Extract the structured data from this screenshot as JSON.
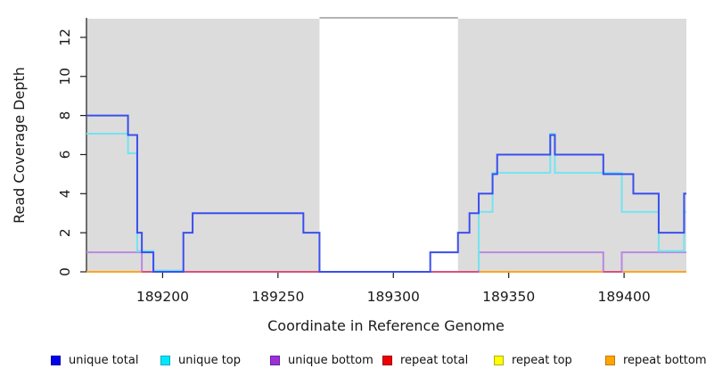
{
  "chart_data": {
    "type": "line",
    "subtype": "step",
    "title": "",
    "xlabel": "Coordinate in Reference Genome",
    "ylabel": "Read Coverage Depth",
    "xlim": [
      189167,
      189427
    ],
    "ylim": [
      0,
      13
    ],
    "grid": false,
    "xticks": [
      189200,
      189250,
      189300,
      189350,
      189400
    ],
    "yticks": [
      0,
      2,
      4,
      6,
      8,
      10,
      12
    ],
    "background": {
      "shaded_color": "#DCDCDC",
      "shaded_regions": [
        [
          189167,
          189268
        ],
        [
          189328,
          189427
        ]
      ],
      "gap_region": [
        189268,
        189328
      ],
      "gap_top_border_color": "#999999"
    },
    "series": [
      {
        "name": "repeat-top",
        "legend_label": "repeat top",
        "line_color": "#E8E850",
        "legend_fill": "#FFFF00",
        "legend_border": "#B0B000",
        "dy": 0,
        "runs": [
          {
            "points": [
              [
                189167,
                0
              ]
            ],
            "end": 189427
          }
        ]
      },
      {
        "name": "repeat-bottom",
        "legend_label": "repeat bottom",
        "line_color": "#FFA51E",
        "legend_fill": "#FFA500",
        "legend_border": "#C27A00",
        "dy": 0,
        "runs": [
          {
            "points": [
              [
                189167,
                0
              ]
            ],
            "end": 189191
          },
          {
            "points": [
              [
                189337,
                0
              ]
            ],
            "end": 189391
          },
          {
            "points": [
              [
                189399,
                0
              ]
            ],
            "end": 189427
          }
        ]
      },
      {
        "name": "unique-bottom",
        "legend_label": "unique bottom",
        "line_color": "#B988E2",
        "legend_fill": "#9B30D9",
        "legend_border": "#70209E",
        "dy": 0,
        "runs": [
          {
            "points": [
              [
                189167,
                1
              ],
              [
                189191,
                0
              ],
              [
                189337,
                1
              ],
              [
                189391,
                0
              ],
              [
                189399,
                1
              ]
            ],
            "end": 189427
          }
        ]
      },
      {
        "name": "repeat-total",
        "legend_label": "repeat total",
        "line_color": "#D8517B",
        "legend_fill": "#EE0000",
        "legend_border": "#A00000",
        "dy": 0,
        "runs": [
          {
            "points": [
              [
                189191,
                0
              ]
            ],
            "end": 189268
          },
          {
            "points": [
              [
                189316,
                0
              ]
            ],
            "end": 189337
          },
          {
            "points": [
              [
                189391,
                0
              ]
            ],
            "end": 189399
          }
        ]
      },
      {
        "name": "unique-top",
        "legend_label": "unique top",
        "line_color": "#73E4F0",
        "legend_fill": "#00E8FF",
        "legend_border": "#00AABF",
        "dy": -1.5,
        "runs": [
          {
            "points": [
              [
                189167,
                7
              ],
              [
                189185,
                6
              ],
              [
                189189,
                1
              ],
              [
                189196,
                0
              ]
            ],
            "end": 189209
          },
          {
            "v0": 0,
            "points": [
              [
                189337,
                3
              ],
              [
                189343,
                5
              ],
              [
                189368,
                7
              ],
              [
                189370,
                5
              ],
              [
                189399,
                3
              ],
              [
                189415,
                1
              ],
              [
                189426,
                3
              ]
            ],
            "end": 189427
          }
        ]
      },
      {
        "name": "unique-total",
        "legend_label": "unique total",
        "line_color": "#3A4FEE",
        "legend_fill": "#0000EE",
        "legend_border": "#0000A6",
        "dy": 0,
        "runs": [
          {
            "points": [
              [
                189167,
                8
              ],
              [
                189185,
                7
              ],
              [
                189189,
                2
              ],
              [
                189191,
                1
              ],
              [
                189196,
                0
              ],
              [
                189209,
                2
              ],
              [
                189213,
                3
              ],
              [
                189261,
                2
              ],
              [
                189268,
                0
              ],
              [
                189316,
                1
              ],
              [
                189328,
                2
              ],
              [
                189333,
                3
              ],
              [
                189337,
                4
              ],
              [
                189343,
                5
              ],
              [
                189345,
                6
              ],
              [
                189368,
                7
              ],
              [
                189370,
                6
              ],
              [
                189391,
                5
              ],
              [
                189404,
                4
              ],
              [
                189415,
                2
              ],
              [
                189426,
                4
              ]
            ],
            "end": 189427
          }
        ]
      }
    ],
    "legend": {
      "position": "bottom",
      "items": [
        {
          "label": "unique total",
          "fill": "#0000EE",
          "border": "#0000A6"
        },
        {
          "label": "unique top",
          "fill": "#00E8FF",
          "border": "#00AABF"
        },
        {
          "label": "unique bottom",
          "fill": "#9B30D9",
          "border": "#70209E"
        },
        {
          "label": "repeat total",
          "fill": "#EE0000",
          "border": "#A00000"
        },
        {
          "label": "repeat top",
          "fill": "#FFFF00",
          "border": "#B0B000"
        },
        {
          "label": "repeat bottom",
          "fill": "#FFA500",
          "border": "#C27A00"
        }
      ]
    },
    "axis_color": "#1A1A1A"
  }
}
